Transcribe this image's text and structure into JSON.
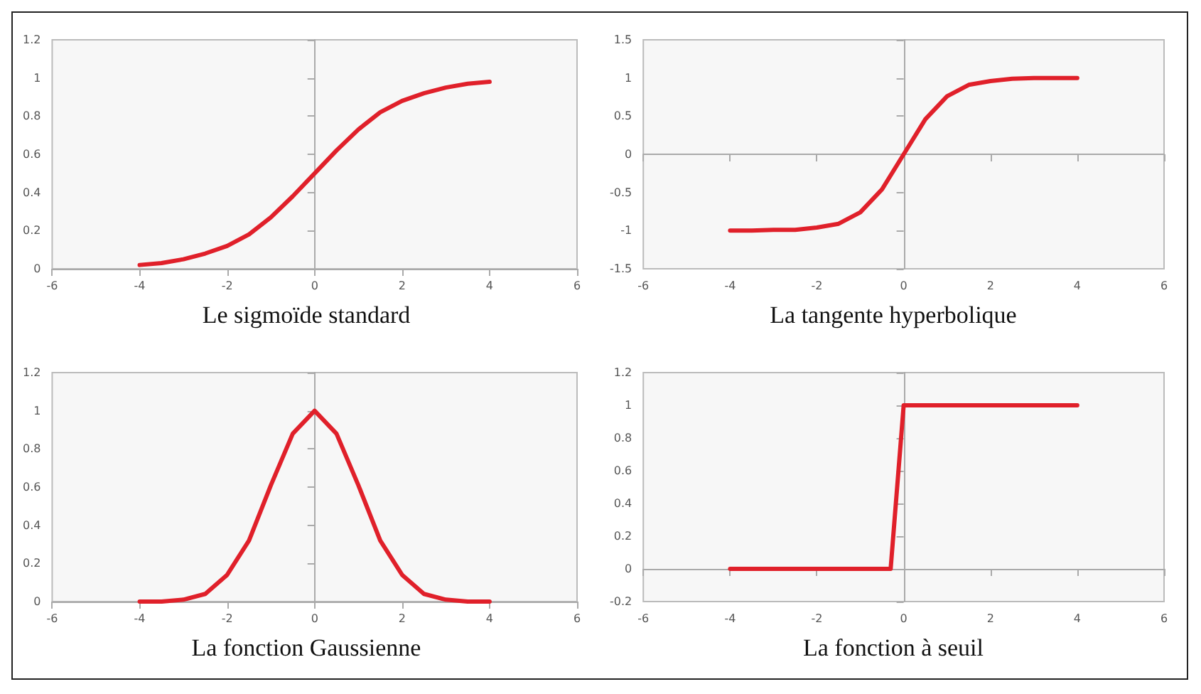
{
  "chart_data": [
    {
      "type": "line",
      "title": "Le sigmoïde standard",
      "x": [
        -4,
        -3.5,
        -3,
        -2.5,
        -2,
        -1.5,
        -1,
        -0.5,
        0,
        0.5,
        1,
        1.5,
        2,
        2.5,
        3,
        3.5,
        4
      ],
      "series": [
        {
          "color": "#e0202a",
          "values": [
            0.02,
            0.03,
            0.05,
            0.08,
            0.12,
            0.18,
            0.27,
            0.38,
            0.5,
            0.62,
            0.73,
            0.82,
            0.88,
            0.92,
            0.95,
            0.97,
            0.98
          ]
        }
      ],
      "xlim": [
        -6,
        6
      ],
      "xticks": [
        -6,
        -4,
        -2,
        0,
        2,
        4,
        6
      ],
      "ylim": [
        0,
        1.2
      ],
      "yticks": [
        0,
        0.2,
        0.4,
        0.6,
        0.8,
        1,
        1.2
      ]
    },
    {
      "type": "line",
      "title": "La tangente hyperbolique",
      "x": [
        -4,
        -3.5,
        -3,
        -2.5,
        -2,
        -1.5,
        -1,
        -0.5,
        0,
        0.5,
        1,
        1.5,
        2,
        2.5,
        3,
        3.5,
        4
      ],
      "series": [
        {
          "color": "#e0202a",
          "values": [
            -1,
            -1,
            -0.99,
            -0.99,
            -0.96,
            -0.91,
            -0.76,
            -0.46,
            0,
            0.46,
            0.76,
            0.91,
            0.96,
            0.99,
            1,
            1,
            1
          ]
        }
      ],
      "xlim": [
        -6,
        6
      ],
      "xticks": [
        -6,
        -4,
        -2,
        0,
        2,
        4,
        6
      ],
      "ylim": [
        -1.5,
        1.5
      ],
      "yticks": [
        -1.5,
        -1,
        -0.5,
        0,
        0.5,
        1,
        1.5
      ]
    },
    {
      "type": "line",
      "title": "La fonction Gaussienne",
      "x": [
        -4,
        -3.5,
        -3,
        -2.5,
        -2,
        -1.5,
        -1,
        -0.5,
        0,
        0.5,
        1,
        1.5,
        2,
        2.5,
        3,
        3.5,
        4
      ],
      "series": [
        {
          "color": "#e0202a",
          "values": [
            0,
            0,
            0.01,
            0.04,
            0.14,
            0.32,
            0.61,
            0.88,
            1,
            0.88,
            0.61,
            0.32,
            0.14,
            0.04,
            0.01,
            0,
            0
          ]
        }
      ],
      "xlim": [
        -6,
        6
      ],
      "xticks": [
        -6,
        -4,
        -2,
        0,
        2,
        4,
        6
      ],
      "ylim": [
        0,
        1.2
      ],
      "yticks": [
        0,
        0.2,
        0.4,
        0.6,
        0.8,
        1,
        1.2
      ]
    },
    {
      "type": "line",
      "title": "La fonction à seuil",
      "x": [
        -4,
        -0.3,
        0,
        4
      ],
      "series": [
        {
          "color": "#e0202a",
          "values": [
            0,
            0,
            1,
            1
          ]
        }
      ],
      "xlim": [
        -6,
        6
      ],
      "xticks": [
        -6,
        -4,
        -2,
        0,
        2,
        4,
        6
      ],
      "ylim": [
        -0.2,
        1.2
      ],
      "yticks": [
        -0.2,
        0,
        0.2,
        0.4,
        0.6,
        0.8,
        1,
        1.2
      ]
    }
  ]
}
